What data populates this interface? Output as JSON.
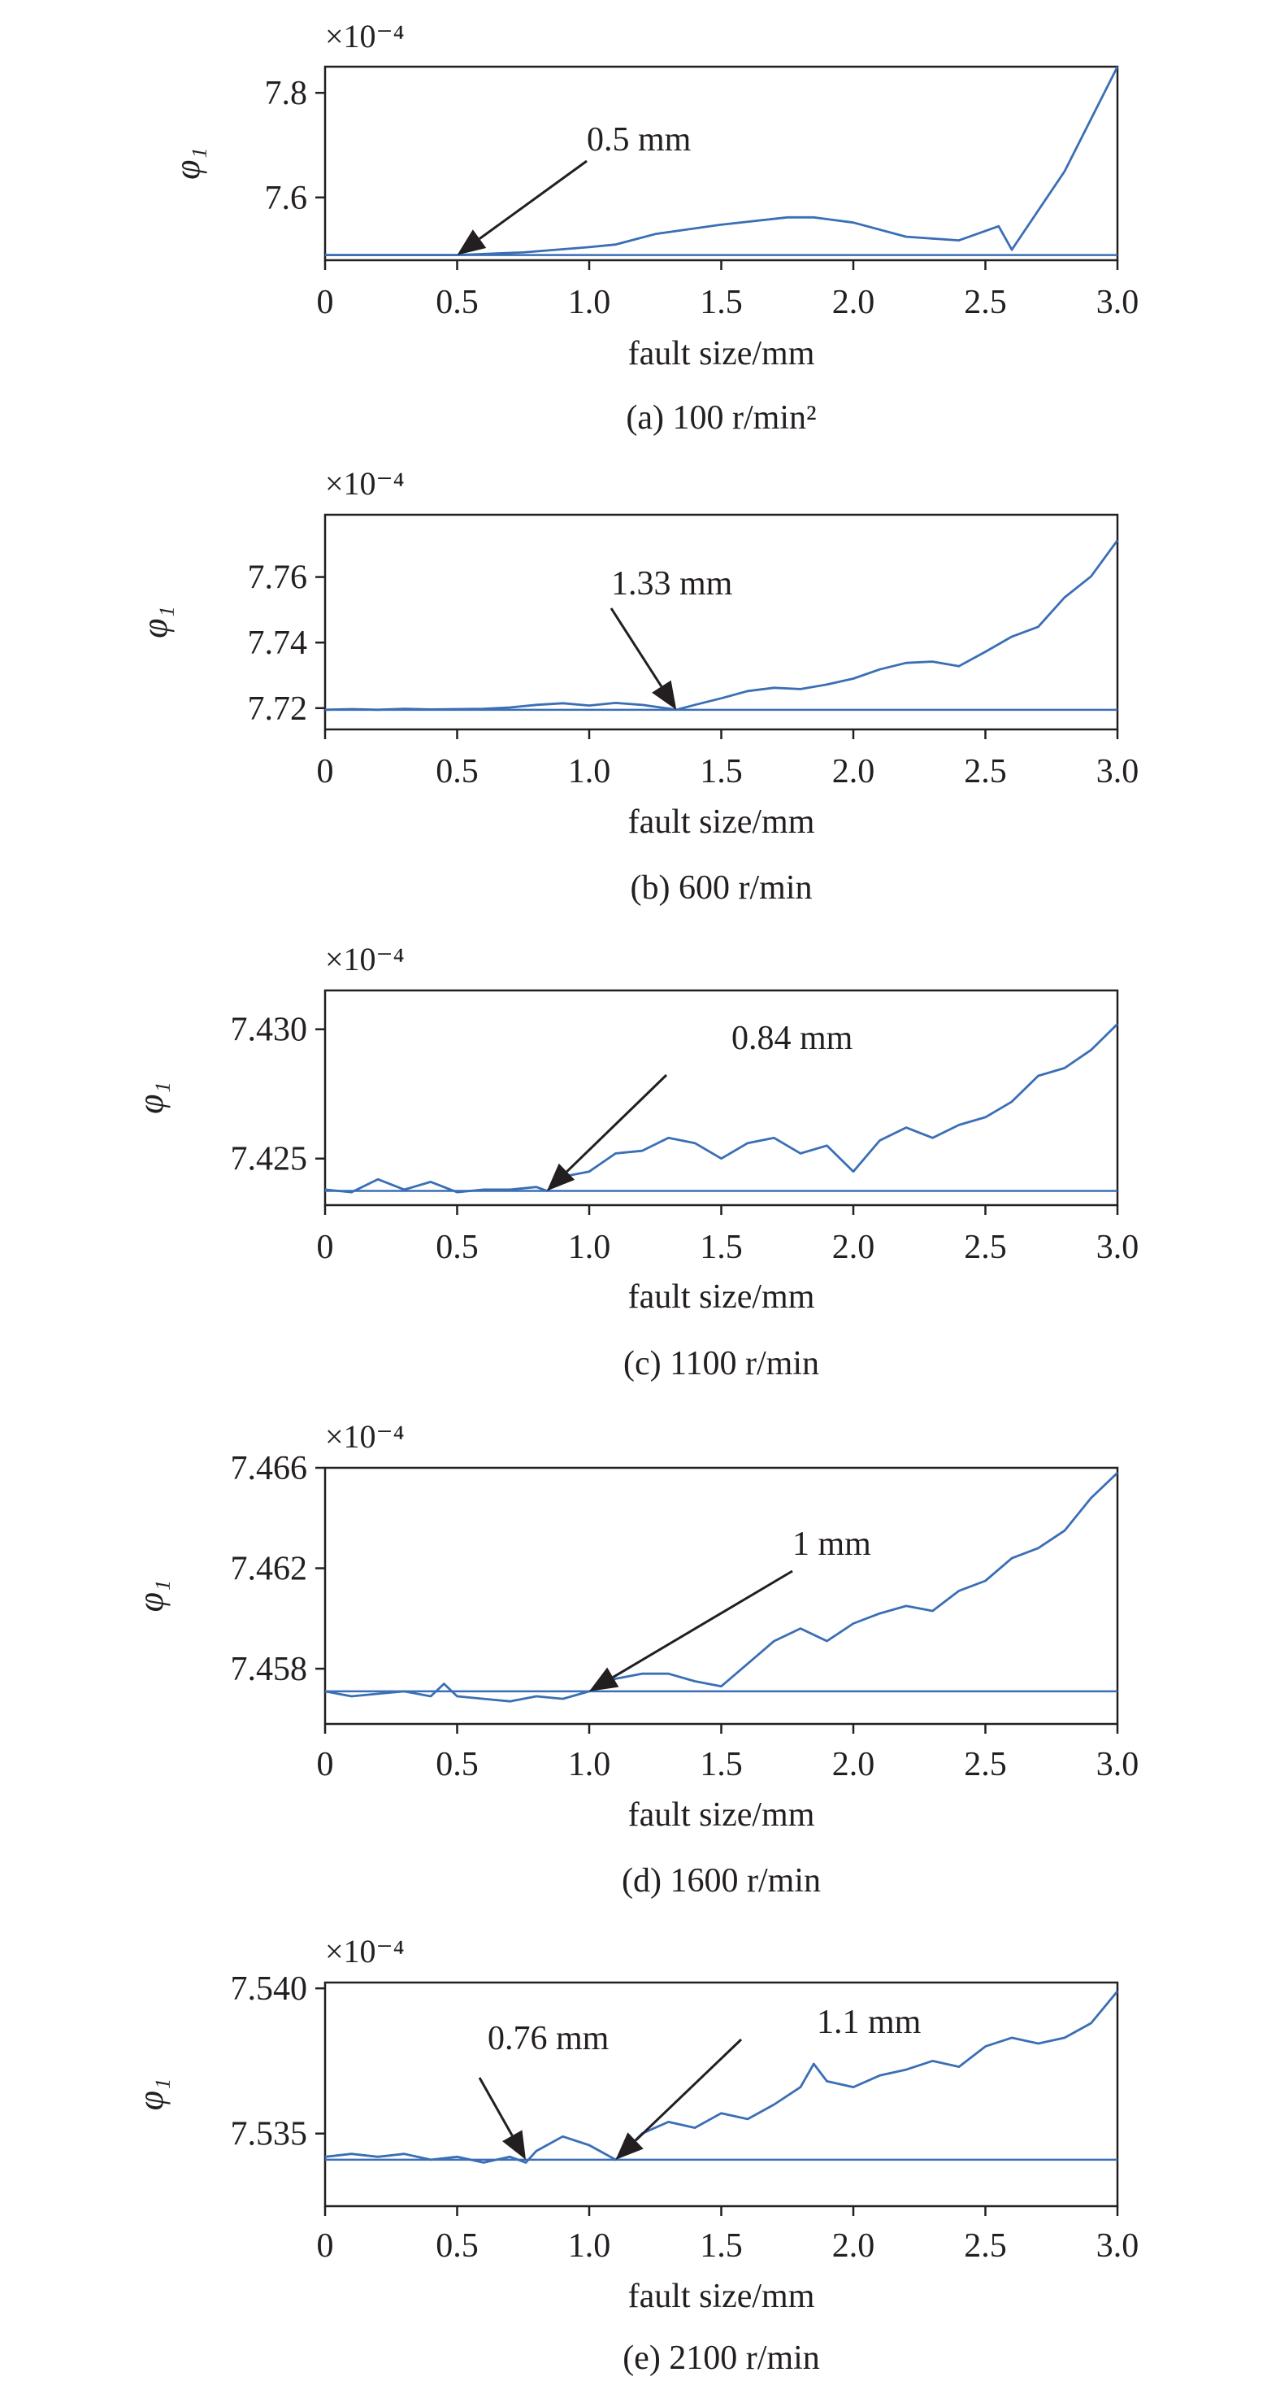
{
  "colors": {
    "line": "#3a6eb5",
    "axis": "#231f20",
    "text": "#231f20",
    "background": "#ffffff"
  },
  "chart_data": [
    {
      "type": "line",
      "panel": "a",
      "caption": "(a) 100 r/min²",
      "xlabel": "fault size/mm",
      "ylabel": "φ₁",
      "multiplier": "×10⁻⁴",
      "xlim": [
        0,
        3.0
      ],
      "ylim": [
        7.48,
        7.85
      ],
      "xticks": [
        0,
        0.5,
        1.0,
        1.5,
        2.0,
        2.5,
        3.0
      ],
      "xtick_labels": [
        "0",
        "0.5",
        "1.0",
        "1.5",
        "2.0",
        "2.5",
        "3.0"
      ],
      "yticks": [
        7.6,
        7.8
      ],
      "ytick_labels": [
        "7.6",
        "7.8"
      ],
      "baseline": 7.49,
      "x": [
        0,
        0.25,
        0.5,
        0.75,
        1.0,
        1.1,
        1.25,
        1.5,
        1.75,
        1.85,
        2.0,
        2.2,
        2.4,
        2.55,
        2.6,
        2.8,
        3.0
      ],
      "y": [
        7.49,
        7.49,
        7.49,
        7.495,
        7.505,
        7.51,
        7.53,
        7.548,
        7.562,
        7.562,
        7.552,
        7.525,
        7.518,
        7.545,
        7.5,
        7.65,
        7.85
      ],
      "annotations": [
        {
          "text": "0.5 mm",
          "x": 0.5,
          "y": 7.49
        }
      ]
    },
    {
      "type": "line",
      "panel": "b",
      "caption": "(b) 600 r/min",
      "xlabel": "fault size/mm",
      "ylabel": "φ₁",
      "multiplier": "×10⁻⁴",
      "xlim": [
        0,
        3.0
      ],
      "ylim": [
        7.7135,
        7.779
      ],
      "xticks": [
        0,
        0.5,
        1.0,
        1.5,
        2.0,
        2.5,
        3.0
      ],
      "xtick_labels": [
        "0",
        "0.5",
        "1.0",
        "1.5",
        "2.0",
        "2.5",
        "3.0"
      ],
      "yticks": [
        7.72,
        7.74,
        7.76
      ],
      "ytick_labels": [
        "7.72",
        "7.74",
        "7.76"
      ],
      "baseline": 7.7195,
      "x": [
        0,
        0.1,
        0.2,
        0.3,
        0.4,
        0.5,
        0.6,
        0.7,
        0.8,
        0.9,
        1.0,
        1.1,
        1.2,
        1.33,
        1.4,
        1.5,
        1.6,
        1.7,
        1.8,
        1.9,
        2.0,
        2.1,
        2.2,
        2.3,
        2.4,
        2.5,
        2.6,
        2.7,
        2.8,
        2.9,
        3.0
      ],
      "y": [
        7.7195,
        7.7197,
        7.7195,
        7.7198,
        7.7196,
        7.7197,
        7.7198,
        7.7202,
        7.721,
        7.7215,
        7.7208,
        7.7216,
        7.721,
        7.7195,
        7.721,
        7.723,
        7.7252,
        7.7262,
        7.7258,
        7.7272,
        7.729,
        7.7318,
        7.7338,
        7.7342,
        7.7328,
        7.7372,
        7.7418,
        7.7448,
        7.7538,
        7.7602,
        7.7712
      ],
      "annotations": [
        {
          "text": "1.33 mm",
          "x": 1.33,
          "y": 7.7195
        }
      ]
    },
    {
      "type": "line",
      "panel": "c",
      "caption": "(c) 1100 r/min",
      "xlabel": "fault size/mm",
      "ylabel": "φ₁",
      "multiplier": "×10⁻⁴",
      "xlim": [
        0,
        3.0
      ],
      "ylim": [
        7.4232,
        7.4315
      ],
      "xticks": [
        0,
        0.5,
        1.0,
        1.5,
        2.0,
        2.5,
        3.0
      ],
      "xtick_labels": [
        "0",
        "0.5",
        "1.0",
        "1.5",
        "2.0",
        "2.5",
        "3.0"
      ],
      "yticks": [
        7.425,
        7.43
      ],
      "ytick_labels": [
        "7.425",
        "7.430"
      ],
      "baseline": 7.42375,
      "x": [
        0,
        0.1,
        0.2,
        0.3,
        0.4,
        0.5,
        0.6,
        0.7,
        0.8,
        0.84,
        0.9,
        1.0,
        1.1,
        1.2,
        1.3,
        1.4,
        1.5,
        1.6,
        1.7,
        1.8,
        1.9,
        2.0,
        2.1,
        2.2,
        2.3,
        2.4,
        2.5,
        2.6,
        2.7,
        2.8,
        2.9,
        3.0
      ],
      "y": [
        7.4238,
        7.4237,
        7.4242,
        7.4238,
        7.4241,
        7.4237,
        7.4238,
        7.4238,
        7.4239,
        7.42375,
        7.4243,
        7.4245,
        7.4252,
        7.4253,
        7.4258,
        7.4256,
        7.425,
        7.4256,
        7.4258,
        7.4252,
        7.4255,
        7.4245,
        7.4257,
        7.4262,
        7.4258,
        7.4263,
        7.4266,
        7.4272,
        7.4282,
        7.4285,
        7.4292,
        7.4302
      ],
      "annotations": [
        {
          "text": "0.84 mm",
          "x": 0.84,
          "y": 7.42375
        }
      ]
    },
    {
      "type": "line",
      "panel": "d",
      "caption": "(d) 1600 r/min",
      "xlabel": "fault size/mm",
      "ylabel": "φ₁",
      "multiplier": "×10⁻⁴",
      "xlim": [
        0,
        3.0
      ],
      "ylim": [
        7.4558,
        7.466
      ],
      "xticks": [
        0,
        0.5,
        1.0,
        1.5,
        2.0,
        2.5,
        3.0
      ],
      "xtick_labels": [
        "0",
        "0.5",
        "1.0",
        "1.5",
        "2.0",
        "2.5",
        "3.0"
      ],
      "yticks": [
        7.458,
        7.462,
        7.466
      ],
      "ytick_labels": [
        "7.458",
        "7.462",
        "7.466"
      ],
      "baseline": 7.4571,
      "x": [
        0,
        0.1,
        0.2,
        0.3,
        0.4,
        0.45,
        0.5,
        0.6,
        0.7,
        0.8,
        0.9,
        1.0,
        1.1,
        1.2,
        1.3,
        1.4,
        1.5,
        1.6,
        1.7,
        1.8,
        1.9,
        2.0,
        2.1,
        2.2,
        2.3,
        2.4,
        2.5,
        2.6,
        2.7,
        2.8,
        2.9,
        3.0
      ],
      "y": [
        7.4571,
        7.4569,
        7.457,
        7.4571,
        7.4569,
        7.4574,
        7.4569,
        7.4568,
        7.4567,
        7.4569,
        7.4568,
        7.4571,
        7.4576,
        7.4578,
        7.4578,
        7.4575,
        7.4573,
        7.4582,
        7.4591,
        7.4596,
        7.4591,
        7.4598,
        7.4602,
        7.4605,
        7.4603,
        7.4611,
        7.4615,
        7.4624,
        7.4628,
        7.4635,
        7.4648,
        7.4658
      ],
      "annotations": [
        {
          "text": "1 mm",
          "x": 1.0,
          "y": 7.4571
        }
      ]
    },
    {
      "type": "line",
      "panel": "e",
      "caption": "(e) 2100 r/min",
      "xlabel": "fault size/mm",
      "ylabel": "φ₁",
      "multiplier": "×10⁻⁴",
      "xlim": [
        0,
        3.0
      ],
      "ylim": [
        7.5325,
        7.5402
      ],
      "xticks": [
        0,
        0.5,
        1.0,
        1.5,
        2.0,
        2.5,
        3.0
      ],
      "xtick_labels": [
        "0",
        "0.5",
        "1.0",
        "1.5",
        "2.0",
        "2.5",
        "3.0"
      ],
      "yticks": [
        7.535,
        7.54
      ],
      "ytick_labels": [
        "7.535",
        "7.540"
      ],
      "baseline": 7.5341,
      "x": [
        0,
        0.1,
        0.2,
        0.3,
        0.4,
        0.5,
        0.6,
        0.7,
        0.76,
        0.8,
        0.9,
        1.0,
        1.1,
        1.2,
        1.3,
        1.4,
        1.5,
        1.6,
        1.7,
        1.8,
        1.85,
        1.9,
        2.0,
        2.1,
        2.2,
        2.3,
        2.4,
        2.5,
        2.6,
        2.7,
        2.8,
        2.9,
        3.0
      ],
      "y": [
        7.5342,
        7.5343,
        7.5342,
        7.5343,
        7.5341,
        7.5342,
        7.534,
        7.5342,
        7.534,
        7.5344,
        7.5349,
        7.5346,
        7.5341,
        7.535,
        7.5354,
        7.5352,
        7.5357,
        7.5355,
        7.536,
        7.5366,
        7.5374,
        7.5368,
        7.5366,
        7.537,
        7.5372,
        7.5375,
        7.5373,
        7.538,
        7.5383,
        7.5381,
        7.5383,
        7.5388,
        7.5399
      ],
      "annotations": [
        {
          "text": "0.76 mm",
          "x": 0.76,
          "y": 7.5341
        },
        {
          "text": "1.1 mm",
          "x": 1.1,
          "y": 7.5341
        }
      ]
    }
  ]
}
